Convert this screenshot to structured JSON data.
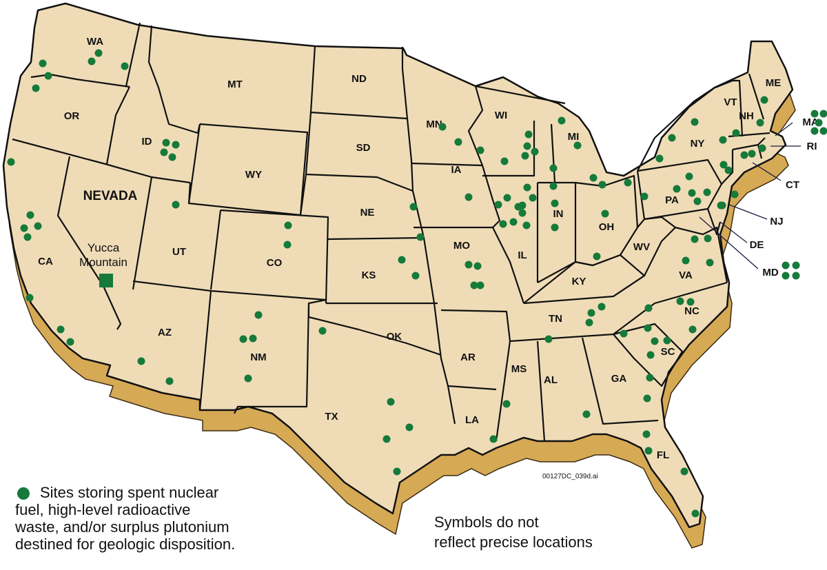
{
  "colors": {
    "land": "#efdcb7",
    "extrusion": "#d6a955",
    "border": "#111111",
    "site": "#157a3a"
  },
  "states": [
    {
      "abbr": "WA"
    },
    {
      "abbr": "OR"
    },
    {
      "abbr": "ID"
    },
    {
      "abbr": "MT"
    },
    {
      "abbr": "ND"
    },
    {
      "abbr": "SD"
    },
    {
      "abbr": "WY"
    },
    {
      "abbr": "NEVADA"
    },
    {
      "abbr": "UT"
    },
    {
      "abbr": "CO"
    },
    {
      "abbr": "NE"
    },
    {
      "abbr": "KS"
    },
    {
      "abbr": "CA"
    },
    {
      "abbr": "AZ"
    },
    {
      "abbr": "NM"
    },
    {
      "abbr": "TX"
    },
    {
      "abbr": "OK"
    },
    {
      "abbr": "MN"
    },
    {
      "abbr": "IA"
    },
    {
      "abbr": "MO"
    },
    {
      "abbr": "AR"
    },
    {
      "abbr": "LA"
    },
    {
      "abbr": "WI"
    },
    {
      "abbr": "IL"
    },
    {
      "abbr": "MI"
    },
    {
      "abbr": "IN"
    },
    {
      "abbr": "OH"
    },
    {
      "abbr": "KY"
    },
    {
      "abbr": "TN"
    },
    {
      "abbr": "MS"
    },
    {
      "abbr": "AL"
    },
    {
      "abbr": "GA"
    },
    {
      "abbr": "FL"
    },
    {
      "abbr": "SC"
    },
    {
      "abbr": "NC"
    },
    {
      "abbr": "VA"
    },
    {
      "abbr": "WV"
    },
    {
      "abbr": "PA"
    },
    {
      "abbr": "NY"
    },
    {
      "abbr": "VT"
    },
    {
      "abbr": "NH"
    },
    {
      "abbr": "ME"
    },
    {
      "abbr": "MA"
    },
    {
      "abbr": "RI"
    },
    {
      "abbr": "CT"
    },
    {
      "abbr": "NJ"
    },
    {
      "abbr": "DE"
    },
    {
      "abbr": "MD"
    }
  ],
  "site_counts": {
    "WA": 5,
    "OR": 1,
    "ID": 4,
    "CA": 8,
    "UT": 1,
    "CO": 2,
    "NM": 4,
    "AZ": 2,
    "TX": 5,
    "KS": 2,
    "NE": 2,
    "MO": 4,
    "IA": 1,
    "MN": 2,
    "WI": 6,
    "MI": 6,
    "IL": 10,
    "IN": 2,
    "OH": 2,
    "PA": 8,
    "NY": 6,
    "VT": 1,
    "NH": 1,
    "ME": 1,
    "MA": 5,
    "CT": 3,
    "NJ": 2,
    "MD": 4,
    "VA": 4,
    "NC": 4,
    "SC": 5,
    "GA": 2,
    "TN": 4,
    "AL": 1,
    "MS": 1,
    "LA": 1,
    "FL": 4
  },
  "repository": {
    "label_line1": "Yucca",
    "label_line2": "Mountain",
    "icon": "green-square"
  },
  "legend": {
    "icon": "green-dot",
    "line1": "Sites storing spent nuclear",
    "line2": "fuel, high-level radioactive",
    "line3": "waste, and/or surplus plutonium",
    "line4": "destined for geologic disposition."
  },
  "note": {
    "line1": "Symbols do not",
    "line2": "reflect precise locations"
  },
  "file_id": "00127DC_039d.ai"
}
